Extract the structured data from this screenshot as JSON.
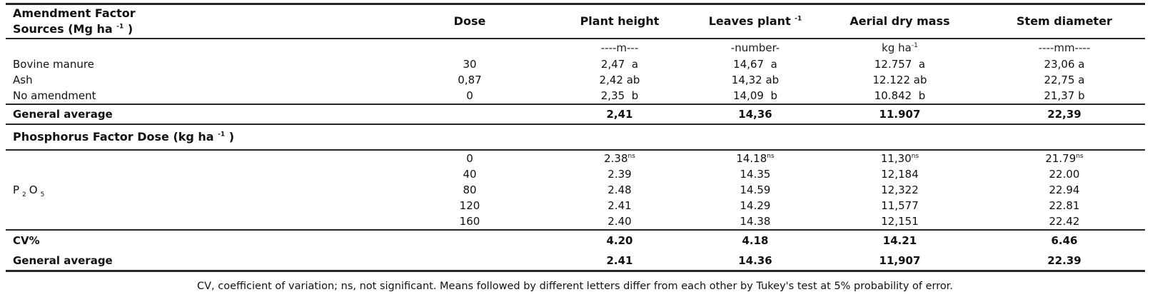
{
  "table": {
    "header": {
      "col1_line1": "Amendment Factor",
      "col1_line2_pre": "Sources (Mg ha ",
      "col1_line2_sup": "-1",
      "col1_line2_post": " )",
      "dose": "Dose",
      "plant_height": "Plant height",
      "leaves_pre": "Leaves plant ",
      "leaves_sup": "-1",
      "aerial": "Aerial dry mass",
      "stem": "Stem diameter"
    },
    "units": {
      "plant_height": "----m---",
      "leaves": "-number-",
      "aerial_pre": "kg ha",
      "aerial_sup": "-1",
      "stem": "----mm----"
    },
    "amendment_rows": [
      {
        "source": "Bovine manure",
        "dose": "30",
        "plant_height": "2,47  a",
        "leaves": "14,67  a",
        "aerial": "12.757  a",
        "stem": "23,06 a"
      },
      {
        "source": "Ash",
        "dose": "0,87",
        "plant_height": "2,42 ab",
        "leaves": "14,32 ab",
        "aerial": "12.122 ab",
        "stem": "22,75 a"
      },
      {
        "source": "No amendment",
        "dose": "0",
        "plant_height": "2,35  b",
        "leaves": "14,09  b",
        "aerial": "10.842  b",
        "stem": "21,37 b"
      }
    ],
    "amendment_general_average": {
      "label": "General average",
      "plant_height": "2,41",
      "leaves": "14,36",
      "aerial": "11.907",
      "stem": "22,39"
    },
    "phosphorus_header": {
      "pre": "Phosphorus Factor Dose (kg ha ",
      "sup": "-1",
      "post": " )"
    },
    "phosphorus_label": {
      "p": "P",
      "sub1": "2",
      "o": "O",
      "sub2": "5"
    },
    "phosphorus_rows": [
      {
        "dose": "0",
        "plant_height": "2.38",
        "plant_height_sup": "ns",
        "leaves": "14.18",
        "leaves_sup": "ns",
        "aerial": "11,30",
        "aerial_sup": "ns",
        "stem": "21.79",
        "stem_sup": "ns"
      },
      {
        "dose": "40",
        "plant_height": "2.39",
        "plant_height_sup": "",
        "leaves": "14.35",
        "leaves_sup": "",
        "aerial": "12,184",
        "aerial_sup": "",
        "stem": "22.00",
        "stem_sup": ""
      },
      {
        "dose": "80",
        "plant_height": "2.48",
        "plant_height_sup": "",
        "leaves": "14.59",
        "leaves_sup": "",
        "aerial": "12,322",
        "aerial_sup": "",
        "stem": "22.94",
        "stem_sup": ""
      },
      {
        "dose": "120",
        "plant_height": "2.41",
        "plant_height_sup": "",
        "leaves": "14.29",
        "leaves_sup": "",
        "aerial": "11,577",
        "aerial_sup": "",
        "stem": "22.81",
        "stem_sup": ""
      },
      {
        "dose": "160",
        "plant_height": "2.40",
        "plant_height_sup": "",
        "leaves": "14.38",
        "leaves_sup": "",
        "aerial": "12,151",
        "aerial_sup": "",
        "stem": "22.42",
        "stem_sup": ""
      }
    ],
    "cv_row": {
      "label": "CV%",
      "plant_height": "4.20",
      "leaves": "4.18",
      "aerial": "14.21",
      "stem": "6.46"
    },
    "phosphorus_general_average": {
      "label": "General average",
      "plant_height": "2.41",
      "leaves": "14.36",
      "aerial": "11,907",
      "stem": "22.39"
    }
  },
  "footnote": "CV, coefficient of variation; ns, not significant. Means followed by different letters differ from each other by Tukey's test at 5% probability of error."
}
